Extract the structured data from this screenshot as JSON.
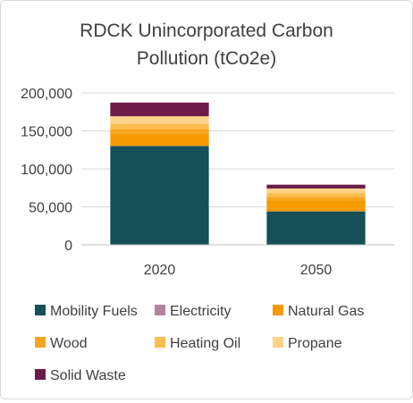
{
  "chart_data": {
    "type": "bar",
    "stacked": true,
    "title_lines": [
      "RDCK Unincorporated Carbon",
      "Pollution (tCo2e)"
    ],
    "categories": [
      "2020",
      "2050"
    ],
    "ylim": [
      0,
      200000
    ],
    "yticks": [
      0,
      50000,
      100000,
      150000,
      200000
    ],
    "ytick_labels": [
      "0",
      "50,000",
      "100,000",
      "150,000",
      "200,000"
    ],
    "grid": true,
    "legend_position": "bottom",
    "series": [
      {
        "name": "Mobility Fuels",
        "color": "#154f57",
        "values": [
          130000,
          44000
        ]
      },
      {
        "name": "Electricity",
        "color": "#b0849c",
        "values": [
          300,
          200
        ]
      },
      {
        "name": "Natural Gas",
        "color": "#f59a00",
        "values": [
          16000,
          14000
        ]
      },
      {
        "name": "Wood",
        "color": "#f7a51e",
        "values": [
          6000,
          5000
        ]
      },
      {
        "name": "Heating Oil",
        "color": "#fbbd4e",
        "values": [
          7000,
          5000
        ]
      },
      {
        "name": "Propane",
        "color": "#fdd38a",
        "values": [
          10000,
          6000
        ]
      },
      {
        "name": "Solid Waste",
        "color": "#6d1a48",
        "values": [
          18000,
          5000
        ]
      }
    ]
  }
}
